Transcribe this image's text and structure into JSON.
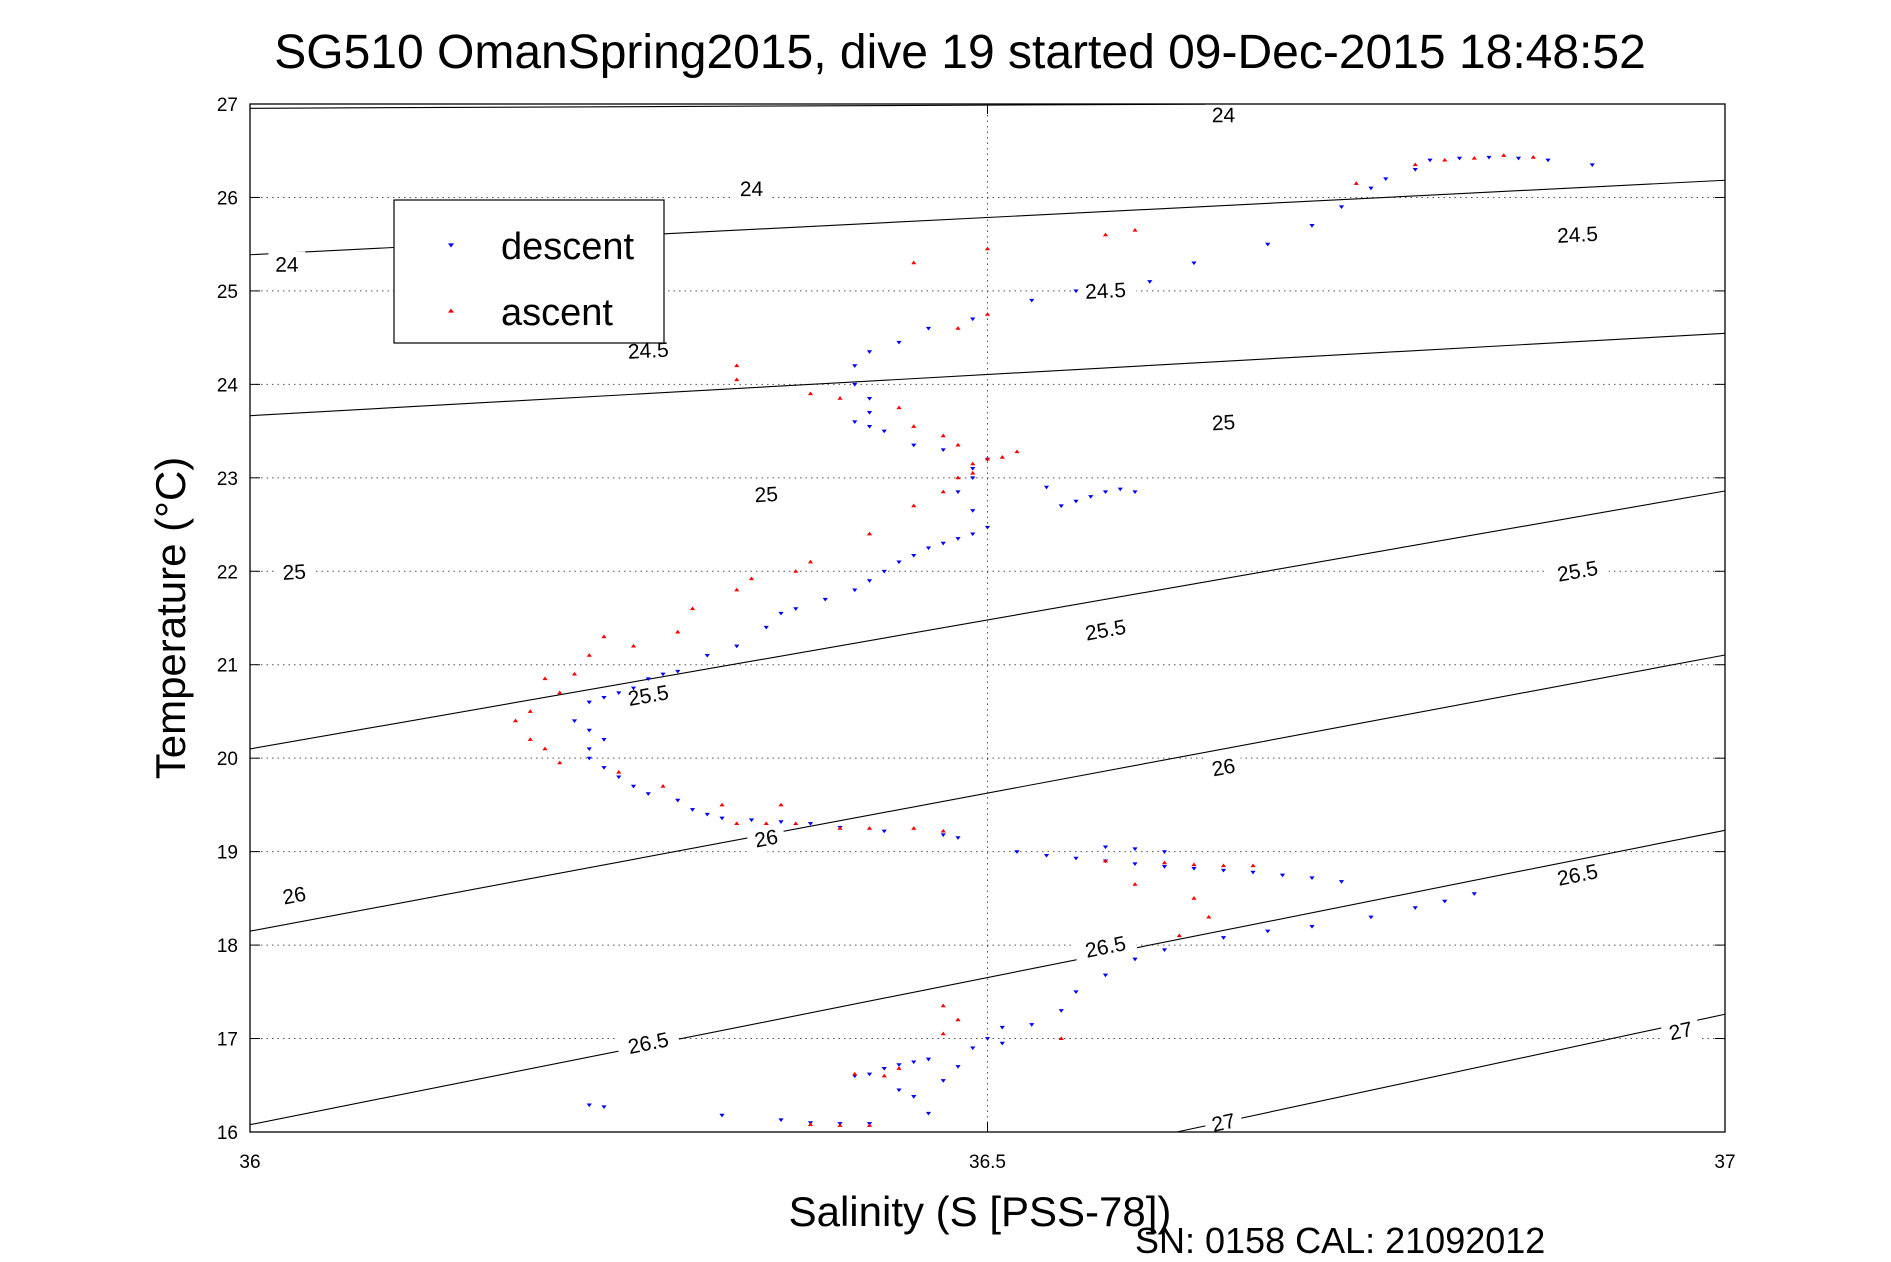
{
  "chart_data": {
    "type": "scatter",
    "title": "SG510 OmanSpring2015, dive 19 started 09-Dec-2015 18:48:52",
    "xlabel": "Salinity (S [PSS-78])",
    "ylabel": "Temperature (°C)",
    "footer": "SN: 0158  CAL: 21092012",
    "xlim": [
      36,
      37
    ],
    "ylim": [
      16,
      27
    ],
    "xticks": [
      36,
      36.5,
      37
    ],
    "xtick_labels": [
      "36",
      "36.5",
      "37"
    ],
    "yticks": [
      16,
      17,
      18,
      19,
      20,
      21,
      22,
      23,
      24,
      25,
      26,
      27
    ],
    "ytick_labels": [
      "16",
      "17",
      "18",
      "19",
      "20",
      "21",
      "22",
      "23",
      "24",
      "25",
      "26",
      "27"
    ],
    "grid": "dotted",
    "legend_position": "top-left",
    "series": [
      {
        "name": "descent",
        "marker": "triangle-down",
        "color": "#0000ff",
        "points": [
          [
            36.23,
            16.29
          ],
          [
            36.24,
            16.27
          ],
          [
            36.32,
            16.18
          ],
          [
            36.36,
            16.13
          ],
          [
            36.38,
            16.1
          ],
          [
            36.4,
            16.09
          ],
          [
            36.42,
            16.09
          ],
          [
            36.41,
            16.6
          ],
          [
            36.42,
            16.62
          ],
          [
            36.43,
            16.68
          ],
          [
            36.44,
            16.72
          ],
          [
            36.45,
            16.75
          ],
          [
            36.46,
            16.78
          ],
          [
            36.44,
            16.45
          ],
          [
            36.45,
            16.38
          ],
          [
            36.46,
            16.2
          ],
          [
            36.47,
            16.55
          ],
          [
            36.48,
            16.7
          ],
          [
            36.49,
            16.9
          ],
          [
            36.5,
            17.0
          ],
          [
            36.51,
            16.95
          ],
          [
            36.51,
            17.12
          ],
          [
            36.53,
            17.15
          ],
          [
            36.55,
            17.3
          ],
          [
            36.56,
            17.5
          ],
          [
            36.58,
            17.68
          ],
          [
            36.6,
            17.85
          ],
          [
            36.62,
            17.95
          ],
          [
            36.66,
            18.08
          ],
          [
            36.69,
            18.15
          ],
          [
            36.72,
            18.2
          ],
          [
            36.76,
            18.3
          ],
          [
            36.79,
            18.4
          ],
          [
            36.81,
            18.47
          ],
          [
            36.83,
            18.55
          ],
          [
            36.74,
            18.68
          ],
          [
            36.72,
            18.72
          ],
          [
            36.7,
            18.75
          ],
          [
            36.68,
            18.78
          ],
          [
            36.66,
            18.8
          ],
          [
            36.64,
            18.82
          ],
          [
            36.62,
            18.84
          ],
          [
            36.6,
            18.87
          ],
          [
            36.58,
            18.9
          ],
          [
            36.56,
            18.93
          ],
          [
            36.54,
            18.96
          ],
          [
            36.52,
            19.0
          ],
          [
            36.58,
            19.05
          ],
          [
            36.6,
            19.03
          ],
          [
            36.62,
            19.0
          ],
          [
            36.48,
            19.15
          ],
          [
            36.47,
            19.18
          ],
          [
            36.43,
            19.22
          ],
          [
            36.4,
            19.26
          ],
          [
            36.38,
            19.3
          ],
          [
            36.36,
            19.32
          ],
          [
            36.34,
            19.34
          ],
          [
            36.32,
            19.36
          ],
          [
            36.31,
            19.4
          ],
          [
            36.3,
            19.45
          ],
          [
            36.29,
            19.55
          ],
          [
            36.27,
            19.62
          ],
          [
            36.26,
            19.7
          ],
          [
            36.25,
            19.8
          ],
          [
            36.24,
            19.9
          ],
          [
            36.23,
            20.0
          ],
          [
            36.23,
            20.1
          ],
          [
            36.24,
            20.2
          ],
          [
            36.23,
            20.3
          ],
          [
            36.22,
            20.4
          ],
          [
            36.23,
            20.6
          ],
          [
            36.24,
            20.65
          ],
          [
            36.25,
            20.7
          ],
          [
            36.26,
            20.75
          ],
          [
            36.27,
            20.85
          ],
          [
            36.28,
            20.9
          ],
          [
            36.29,
            20.93
          ],
          [
            36.31,
            21.1
          ],
          [
            36.33,
            21.2
          ],
          [
            36.35,
            21.4
          ],
          [
            36.36,
            21.55
          ],
          [
            36.37,
            21.6
          ],
          [
            36.39,
            21.7
          ],
          [
            36.41,
            21.8
          ],
          [
            36.42,
            21.9
          ],
          [
            36.43,
            22.0
          ],
          [
            36.44,
            22.1
          ],
          [
            36.45,
            22.17
          ],
          [
            36.46,
            22.25
          ],
          [
            36.47,
            22.3
          ],
          [
            36.48,
            22.35
          ],
          [
            36.49,
            22.4
          ],
          [
            36.5,
            22.47
          ],
          [
            36.49,
            22.65
          ],
          [
            36.48,
            22.85
          ],
          [
            36.49,
            23.0
          ],
          [
            36.49,
            23.1
          ],
          [
            36.5,
            23.2
          ],
          [
            36.47,
            23.3
          ],
          [
            36.45,
            23.35
          ],
          [
            36.43,
            23.5
          ],
          [
            36.42,
            23.55
          ],
          [
            36.41,
            23.6
          ],
          [
            36.42,
            23.7
          ],
          [
            36.42,
            23.85
          ],
          [
            36.41,
            24.0
          ],
          [
            36.41,
            24.2
          ],
          [
            36.42,
            24.35
          ],
          [
            36.44,
            24.45
          ],
          [
            36.46,
            24.6
          ],
          [
            36.49,
            24.7
          ],
          [
            36.53,
            24.9
          ],
          [
            36.56,
            25.0
          ],
          [
            36.61,
            25.1
          ],
          [
            36.64,
            25.3
          ],
          [
            36.69,
            25.5
          ],
          [
            36.72,
            25.7
          ],
          [
            36.74,
            25.9
          ],
          [
            36.76,
            26.1
          ],
          [
            36.77,
            26.2
          ],
          [
            36.79,
            26.3
          ],
          [
            36.8,
            26.4
          ],
          [
            36.82,
            26.42
          ],
          [
            36.84,
            26.43
          ],
          [
            36.86,
            26.42
          ],
          [
            36.88,
            26.4
          ],
          [
            36.91,
            26.35
          ],
          [
            36.54,
            22.9
          ],
          [
            36.55,
            22.7
          ],
          [
            36.56,
            22.75
          ],
          [
            36.57,
            22.8
          ],
          [
            36.58,
            22.85
          ],
          [
            36.59,
            22.88
          ],
          [
            36.6,
            22.85
          ]
        ]
      },
      {
        "name": "ascent",
        "marker": "triangle-up",
        "color": "#ff0000",
        "points": [
          [
            36.38,
            16.08
          ],
          [
            36.4,
            16.07
          ],
          [
            36.42,
            16.07
          ],
          [
            36.41,
            16.62
          ],
          [
            36.43,
            16.6
          ],
          [
            36.44,
            16.68
          ],
          [
            36.47,
            17.05
          ],
          [
            36.48,
            17.2
          ],
          [
            36.47,
            17.35
          ],
          [
            36.55,
            17.0
          ],
          [
            36.63,
            18.1
          ],
          [
            36.65,
            18.3
          ],
          [
            36.64,
            18.5
          ],
          [
            36.6,
            18.65
          ],
          [
            36.58,
            18.9
          ],
          [
            36.62,
            18.88
          ],
          [
            36.64,
            18.86
          ],
          [
            36.66,
            18.85
          ],
          [
            36.68,
            18.85
          ],
          [
            36.47,
            19.22
          ],
          [
            36.45,
            19.25
          ],
          [
            36.42,
            19.25
          ],
          [
            36.4,
            19.25
          ],
          [
            36.37,
            19.3
          ],
          [
            36.35,
            19.3
          ],
          [
            36.33,
            19.3
          ],
          [
            36.36,
            19.5
          ],
          [
            36.32,
            19.5
          ],
          [
            36.28,
            19.7
          ],
          [
            36.25,
            19.85
          ],
          [
            36.21,
            19.95
          ],
          [
            36.2,
            20.1
          ],
          [
            36.19,
            20.2
          ],
          [
            36.18,
            20.4
          ],
          [
            36.19,
            20.5
          ],
          [
            36.21,
            20.7
          ],
          [
            36.2,
            20.85
          ],
          [
            36.22,
            20.9
          ],
          [
            36.23,
            21.1
          ],
          [
            36.24,
            21.3
          ],
          [
            36.26,
            21.2
          ],
          [
            36.29,
            21.35
          ],
          [
            36.3,
            21.6
          ],
          [
            36.33,
            21.8
          ],
          [
            36.34,
            21.92
          ],
          [
            36.37,
            22.0
          ],
          [
            36.38,
            22.1
          ],
          [
            36.42,
            22.4
          ],
          [
            36.45,
            22.7
          ],
          [
            36.47,
            22.85
          ],
          [
            36.48,
            23.0
          ],
          [
            36.49,
            23.05
          ],
          [
            36.49,
            23.15
          ],
          [
            36.5,
            23.2
          ],
          [
            36.51,
            23.22
          ],
          [
            36.52,
            23.28
          ],
          [
            36.48,
            23.35
          ],
          [
            36.47,
            23.45
          ],
          [
            36.45,
            23.55
          ],
          [
            36.44,
            23.75
          ],
          [
            36.4,
            23.85
          ],
          [
            36.38,
            23.9
          ],
          [
            36.33,
            24.2
          ],
          [
            36.33,
            24.05
          ],
          [
            36.48,
            24.6
          ],
          [
            36.5,
            24.75
          ],
          [
            36.5,
            25.45
          ],
          [
            36.45,
            25.3
          ],
          [
            36.58,
            25.6
          ],
          [
            36.6,
            25.65
          ],
          [
            36.75,
            26.15
          ],
          [
            36.79,
            26.35
          ],
          [
            36.81,
            26.4
          ],
          [
            36.83,
            26.42
          ],
          [
            36.85,
            26.45
          ],
          [
            36.87,
            26.43
          ]
        ]
      }
    ],
    "isopycnals": [
      {
        "value": 24.0,
        "start": [
          36.0,
          26.954
        ],
        "end": [
          36.6775,
          27.0
        ],
        "labels": [
          [
            36.025,
            25.28,
            "24"
          ],
          [
            36.34,
            26.09,
            "24"
          ],
          [
            36.66,
            26.88,
            "24"
          ]
        ]
      },
      {
        "value": 24.5,
        "start": [
          36.0,
          25.387
        ],
        "end": [
          37.0,
          26.184
        ],
        "labels": [
          [
            36.27,
            24.36,
            "24.5"
          ],
          [
            36.58,
            25.0,
            "24.5"
          ],
          [
            36.9,
            25.6,
            "24.5"
          ]
        ]
      },
      {
        "value": 25.0,
        "start": [
          36.0,
          23.665
        ],
        "end": [
          37.0,
          24.546
        ],
        "labels": [
          [
            36.03,
            21.99,
            "25"
          ],
          [
            36.35,
            22.82,
            "25"
          ],
          [
            36.66,
            23.59,
            "25"
          ]
        ]
      },
      {
        "value": 25.5,
        "start": [
          36.0,
          20.099
        ],
        "end": [
          37.0,
          22.859
        ],
        "labels": [
          [
            36.27,
            20.67,
            "25.5"
          ],
          [
            36.58,
            21.37,
            "25.5"
          ],
          [
            36.9,
            22.0,
            "25.5"
          ]
        ]
      },
      {
        "value": 26.0,
        "start": [
          36.0,
          18.149
        ],
        "end": [
          37.0,
          21.104
        ],
        "labels": [
          [
            36.03,
            18.53,
            "26"
          ],
          [
            36.35,
            19.14,
            "26"
          ],
          [
            36.66,
            19.9,
            "26"
          ]
        ]
      },
      {
        "value": 26.5,
        "start": [
          36.0,
          16.078
        ],
        "end": [
          37.0,
          19.228
        ],
        "labels": [
          [
            36.27,
            16.95,
            "26.5"
          ],
          [
            36.58,
            17.98,
            "26.5"
          ],
          [
            36.9,
            18.75,
            "26.5"
          ]
        ]
      },
      {
        "value": 27.0,
        "start": [
          36.6283,
          16.0
        ],
        "end": [
          37.0,
          17.26
        ],
        "labels": [
          [
            36.66,
            16.1,
            "27"
          ],
          [
            36.97,
            17.08,
            "27"
          ]
        ]
      }
    ]
  }
}
